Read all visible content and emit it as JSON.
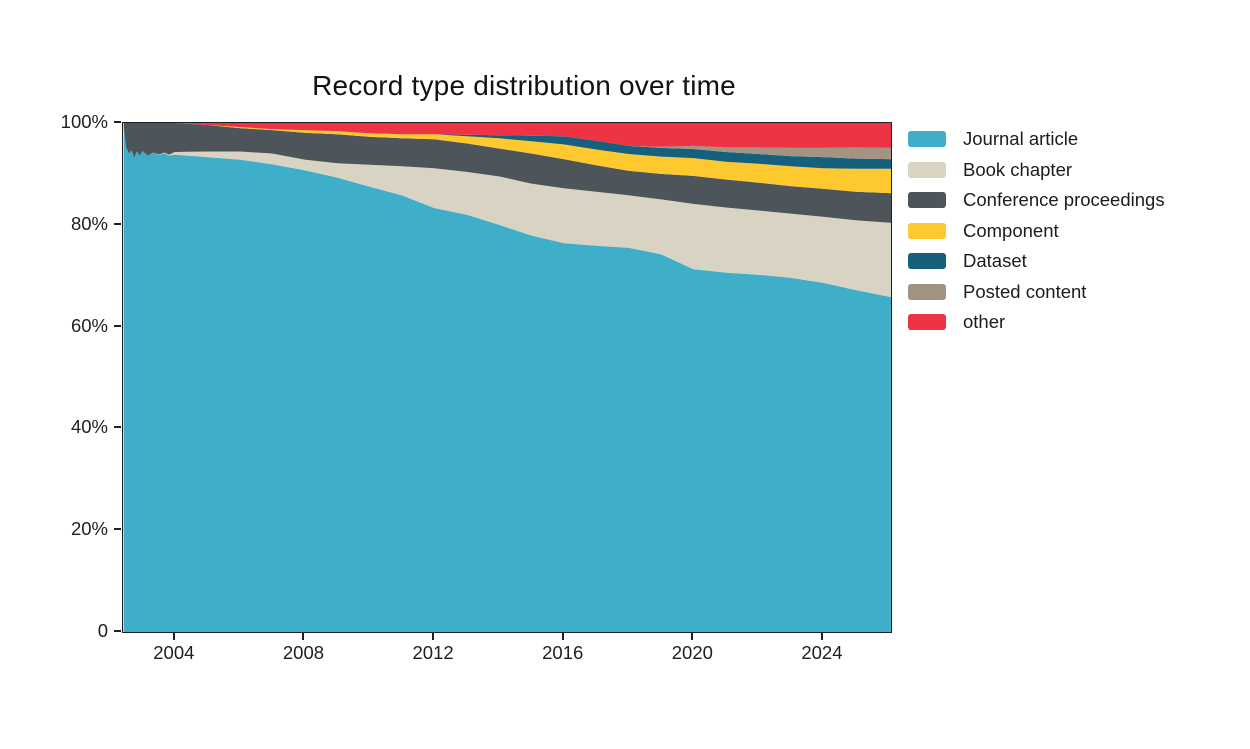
{
  "page": {
    "background": "#ffffff",
    "text_color": "#1f1f1f"
  },
  "chart_data": {
    "type": "area",
    "stacked": true,
    "normalized_percent": true,
    "title": "Record type distribution over time",
    "xlabel": "",
    "ylabel": "",
    "xlim": [
      2002.4,
      2026.1
    ],
    "ylim": [
      0,
      100
    ],
    "grid": false,
    "legend_position": "right-outside",
    "axis_color": "#1f1f1f",
    "x": [
      2002.42,
      2002.5,
      2002.58,
      2002.67,
      2002.75,
      2002.83,
      2002.92,
      2003.0,
      2003.17,
      2003.33,
      2003.5,
      2003.67,
      2003.83,
      2004,
      2005,
      2006,
      2007,
      2008,
      2009,
      2010,
      2011,
      2012,
      2013,
      2014,
      2015,
      2016,
      2017,
      2018,
      2019,
      2020,
      2021,
      2022,
      2023,
      2024,
      2025,
      2026.1
    ],
    "series": [
      {
        "name": "Journal article",
        "color": "#3eaec9",
        "values": [
          99.5,
          95.2,
          94.0,
          94.6,
          93.2,
          94.4,
          93.6,
          94.5,
          93.6,
          94.2,
          93.7,
          94.1,
          93.6,
          93.8,
          93.3,
          92.8,
          91.9,
          90.7,
          89.3,
          87.5,
          85.8,
          83.3,
          82.0,
          80.0,
          77.9,
          76.4,
          75.9,
          75.5,
          74.2,
          71.3,
          70.6,
          70.2,
          69.6,
          68.6,
          67.2,
          65.8
        ]
      },
      {
        "name": "Book chapter",
        "color": "#d9d3c4",
        "values": [
          0,
          0,
          0,
          0,
          0,
          0,
          0,
          0,
          0,
          0,
          0.1,
          0.1,
          0.2,
          0.5,
          1.1,
          1.6,
          2.1,
          2.1,
          2.8,
          4.3,
          5.7,
          7.8,
          8.4,
          9.5,
          10.2,
          10.8,
          10.6,
          10.3,
          10.8,
          12.8,
          12.8,
          12.6,
          12.6,
          13.0,
          13.7,
          14.6
        ]
      },
      {
        "name": "Conference proceedings",
        "color": "#4d555a",
        "values": [
          0.5,
          4.8,
          6.0,
          5.4,
          6.8,
          5.6,
          6.4,
          5.5,
          6.4,
          5.8,
          6.2,
          5.8,
          6.2,
          5.7,
          5.2,
          4.6,
          4.6,
          5.3,
          5.7,
          5.5,
          5.5,
          5.7,
          5.6,
          5.5,
          5.9,
          5.7,
          5.2,
          4.8,
          5.0,
          5.5,
          5.5,
          5.5,
          5.4,
          5.5,
          5.6,
          5.8
        ]
      },
      {
        "name": "Component",
        "color": "#fec82f",
        "values": [
          0,
          0,
          0,
          0,
          0,
          0,
          0,
          0,
          0,
          0,
          0,
          0,
          0,
          0,
          0,
          0.2,
          0.2,
          0.5,
          0.6,
          0.7,
          0.8,
          1.0,
          1.4,
          2.0,
          2.4,
          2.9,
          3.1,
          3.3,
          3.4,
          3.5,
          3.5,
          3.7,
          3.9,
          4.0,
          4.5,
          4.8
        ]
      },
      {
        "name": "Dataset",
        "color": "#15607c",
        "values": [
          0,
          0,
          0,
          0,
          0,
          0,
          0,
          0,
          0,
          0,
          0,
          0,
          0,
          0,
          0,
          0,
          0,
          0,
          0,
          0,
          0,
          0,
          0.3,
          0.6,
          1.1,
          1.6,
          1.7,
          1.6,
          1.7,
          1.8,
          1.9,
          1.9,
          2.0,
          2.2,
          2.0,
          1.9
        ]
      },
      {
        "name": "Posted content",
        "color": "#a39382",
        "values": [
          0,
          0,
          0,
          0,
          0,
          0,
          0,
          0,
          0,
          0,
          0,
          0,
          0,
          0,
          0,
          0,
          0,
          0,
          0,
          0,
          0,
          0,
          0,
          0,
          0,
          0,
          0,
          0,
          0.2,
          0.6,
          0.9,
          1.3,
          1.6,
          1.8,
          2.2,
          2.2
        ]
      },
      {
        "name": "other",
        "color": "#ee3344",
        "values": [
          0,
          0,
          0,
          0,
          0,
          0,
          0,
          0,
          0,
          0,
          0,
          0,
          0,
          0,
          0.4,
          0.8,
          1.2,
          1.4,
          1.6,
          2.0,
          2.2,
          2.2,
          2.3,
          2.4,
          2.5,
          2.6,
          3.5,
          4.5,
          4.7,
          4.5,
          4.8,
          4.8,
          4.9,
          4.9,
          4.8,
          4.9
        ]
      }
    ],
    "xticks": [
      2004,
      2008,
      2012,
      2016,
      2020,
      2024
    ],
    "xtick_labels": [
      "2004",
      "2008",
      "2012",
      "2016",
      "2020",
      "2024"
    ],
    "yticks": [
      0,
      20,
      40,
      60,
      80,
      100
    ],
    "ytick_labels": [
      "0",
      "20%",
      "40%",
      "60%",
      "80%",
      "100%"
    ]
  }
}
